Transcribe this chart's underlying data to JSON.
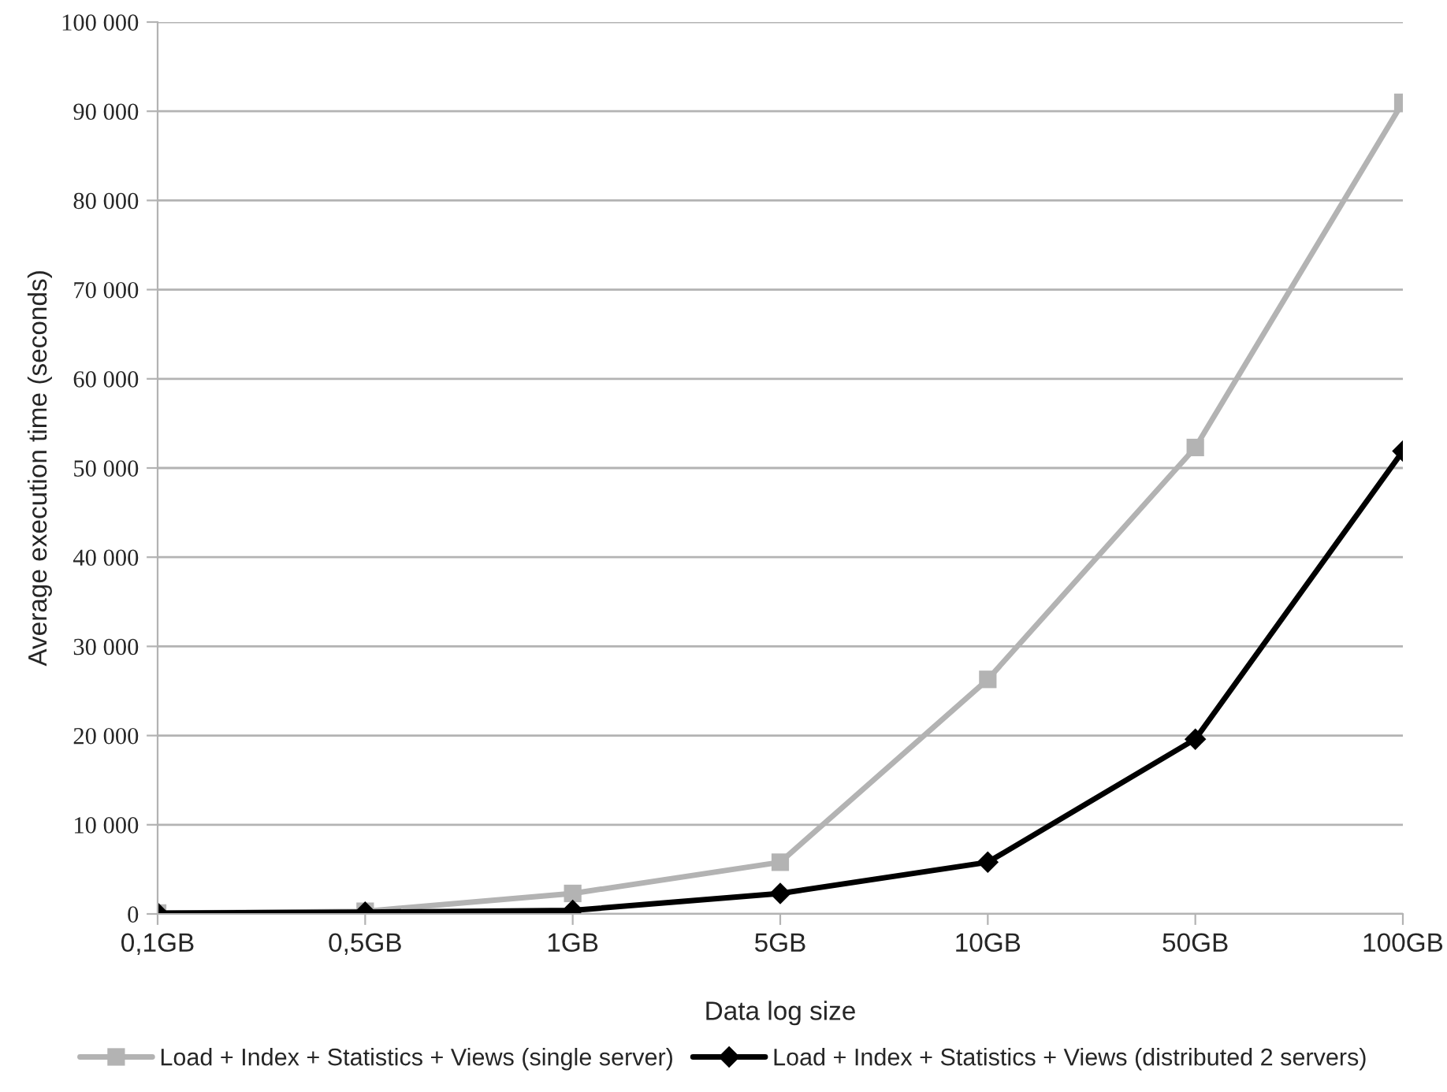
{
  "chart_data": {
    "type": "line",
    "xlabel": "Data log size",
    "ylabel": "Average execution time (seconds)",
    "categories": [
      "0,1GB",
      "0,5GB",
      "1GB",
      "5GB",
      "10GB",
      "50GB",
      "100GB"
    ],
    "series": [
      {
        "name": "Load + Index + Statistics + Views (single server)",
        "color": "#b3b3b3",
        "marker": "square",
        "values": [
          100,
          300,
          2300,
          5800,
          26300,
          52300,
          91000
        ]
      },
      {
        "name": "Load + Index + Statistics + Views (distributed 2 servers)",
        "color": "#000000",
        "marker": "diamond",
        "values": [
          100,
          200,
          400,
          2300,
          5800,
          19600,
          51900
        ]
      }
    ],
    "ylim": [
      0,
      100000
    ],
    "yticks": [
      0,
      {
        "value": 10000,
        "label": "10 000"
      },
      {
        "value": 20000,
        "label": "20 000"
      },
      {
        "value": 30000,
        "label": "30 000"
      },
      {
        "value": 40000,
        "label": "40 000"
      },
      {
        "value": 50000,
        "label": "50 000"
      },
      {
        "value": 60000,
        "label": "60 000"
      },
      {
        "value": 70000,
        "label": "70 000"
      },
      {
        "value": 80000,
        "label": "80 000"
      },
      {
        "value": 90000,
        "label": "90 000"
      },
      {
        "value": 100000,
        "label": "100 000"
      }
    ],
    "grid": "y",
    "legend": "bottom",
    "line_style": "solid"
  }
}
